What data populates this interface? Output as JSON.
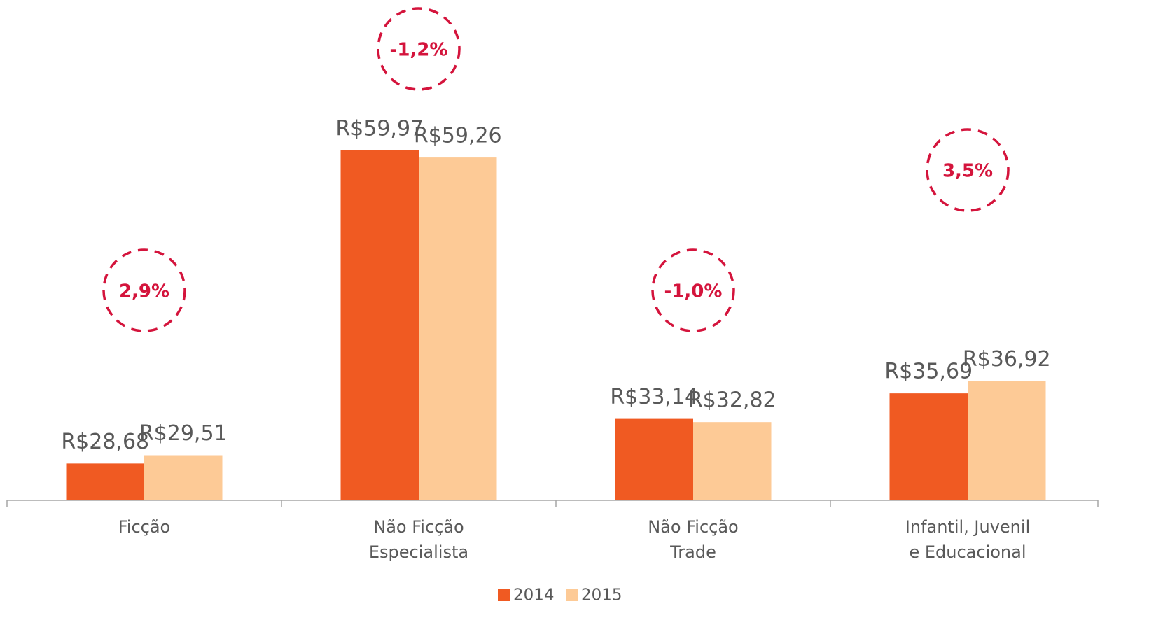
{
  "chart_data": {
    "type": "bar",
    "categories": [
      "Ficção",
      "Não Ficção\nEspecialista",
      "Não Ficção\nTrade",
      "Infantil, Juvenil\ne Educacional"
    ],
    "series": [
      {
        "name": "2014",
        "color": "#f05a22",
        "values": [
          28.68,
          59.97,
          33.14,
          35.69
        ],
        "value_labels": [
          "R$28,68",
          "R$59,97",
          "R$33,14",
          "R$35,69"
        ]
      },
      {
        "name": "2015",
        "color": "#fdca96",
        "values": [
          29.51,
          59.26,
          32.82,
          36.92
        ],
        "value_labels": [
          "R$29,51",
          "R$59,26",
          "R$32,82",
          "R$36,92"
        ]
      }
    ],
    "annotations": [
      "2,9%",
      "-1,2%",
      "-1,0%",
      "3,5%"
    ],
    "ylim": [
      25,
      75
    ],
    "legend": "bottom"
  }
}
